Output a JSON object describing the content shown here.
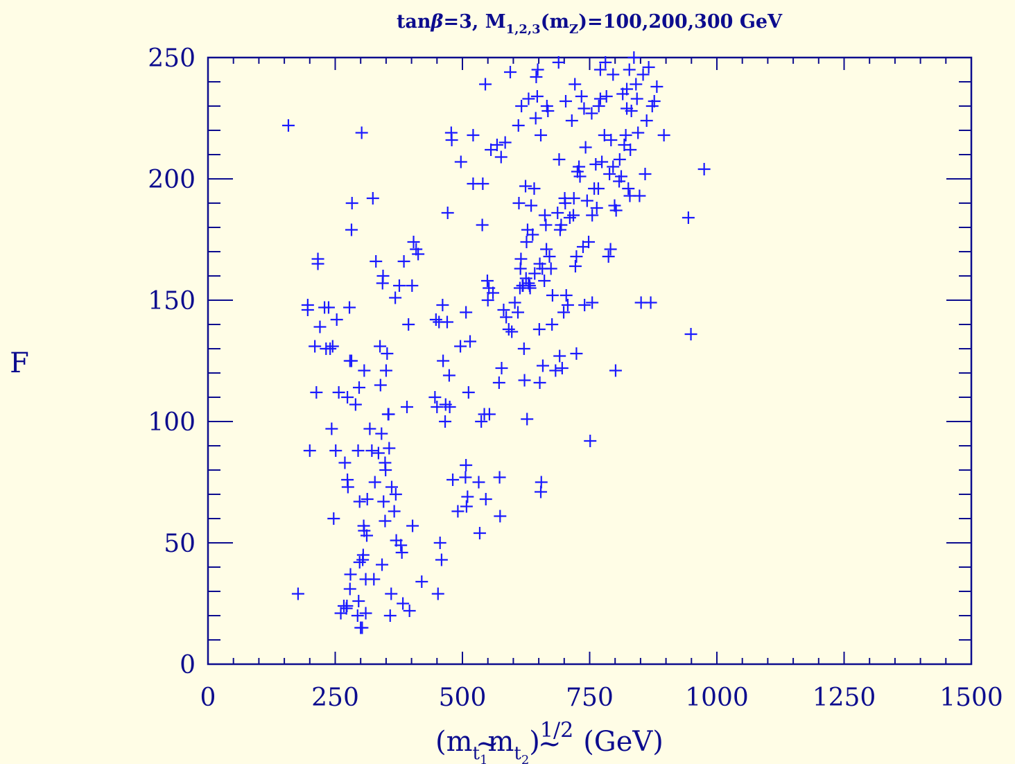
{
  "chart_data": {
    "type": "scatter",
    "title": "tanβ=3, M₁,₂,₃(m_Z)=100,200,300 GeV",
    "title_parts": {
      "tan": "tan",
      "beta": "β",
      "eq1": "=3,  M",
      "msub": "1,2,3",
      "mid": "(m",
      "zsub": "Z",
      "rest": ")=100,200,300 GeV"
    },
    "xlabel": "(m̃t₁ m̃t₂)^1/2 (GeV)",
    "xlabel_parts": {
      "open": "(m",
      "sub1": "t",
      "idx1": "1",
      "mid": "m",
      "sub2": "t",
      "idx2": "2",
      "close": ")",
      "exp": "1/2",
      "unit": "(GeV)",
      "tilde": "~"
    },
    "ylabel": "F",
    "xlim": [
      0,
      1500
    ],
    "ylim": [
      0,
      250
    ],
    "xticks": [
      "0",
      "250",
      "500",
      "750",
      "1000",
      "1250",
      "1500"
    ],
    "yticks": [
      "0",
      "50",
      "100",
      "150",
      "200",
      "250"
    ],
    "grid": false,
    "marker": "+",
    "color": "#1a1aff",
    "axis_color": "#0c0c8e",
    "background": "#fffde6",
    "points": [
      [
        158,
        222
      ],
      [
        177,
        29
      ],
      [
        196,
        148
      ],
      [
        196,
        146
      ],
      [
        200,
        88
      ],
      [
        210,
        131
      ],
      [
        213,
        112
      ],
      [
        216,
        165
      ],
      [
        216,
        167
      ],
      [
        220,
        139
      ],
      [
        229,
        147
      ],
      [
        232,
        130
      ],
      [
        237,
        147
      ],
      [
        240,
        130
      ],
      [
        243,
        97
      ],
      [
        245,
        131
      ],
      [
        247,
        60
      ],
      [
        251,
        88
      ],
      [
        253,
        142
      ],
      [
        257,
        112
      ],
      [
        261,
        21
      ],
      [
        267,
        24
      ],
      [
        269,
        83
      ],
      [
        272,
        23
      ],
      [
        273,
        24
      ],
      [
        274,
        110
      ],
      [
        274,
        76
      ],
      [
        275,
        73
      ],
      [
        278,
        147
      ],
      [
        279,
        125
      ],
      [
        279,
        31
      ],
      [
        280,
        37
      ],
      [
        282,
        125
      ],
      [
        282,
        179
      ],
      [
        283,
        190
      ],
      [
        290,
        107
      ],
      [
        294,
        20
      ],
      [
        295,
        88
      ],
      [
        296,
        26
      ],
      [
        297,
        114
      ],
      [
        298,
        67
      ],
      [
        298,
        42
      ],
      [
        300,
        15
      ],
      [
        302,
        219
      ],
      [
        303,
        15
      ],
      [
        304,
        43
      ],
      [
        305,
        45
      ],
      [
        306,
        57
      ],
      [
        307,
        121
      ],
      [
        307,
        55
      ],
      [
        310,
        35
      ],
      [
        310,
        21
      ],
      [
        312,
        53
      ],
      [
        313,
        68
      ],
      [
        318,
        97
      ],
      [
        322,
        88
      ],
      [
        324,
        192
      ],
      [
        326,
        35
      ],
      [
        328,
        75
      ],
      [
        330,
        166
      ],
      [
        335,
        87
      ],
      [
        338,
        131
      ],
      [
        339,
        115
      ],
      [
        341,
        95
      ],
      [
        342,
        41
      ],
      [
        343,
        157
      ],
      [
        344,
        160
      ],
      [
        345,
        67
      ],
      [
        348,
        59
      ],
      [
        348,
        83
      ],
      [
        349,
        80
      ],
      [
        350,
        121
      ],
      [
        352,
        128
      ],
      [
        354,
        103
      ],
      [
        355,
        103
      ],
      [
        356,
        89
      ],
      [
        358,
        20
      ],
      [
        360,
        29
      ],
      [
        361,
        73
      ],
      [
        366,
        63
      ],
      [
        368,
        151
      ],
      [
        369,
        70
      ],
      [
        370,
        51
      ],
      [
        376,
        156
      ],
      [
        379,
        49
      ],
      [
        381,
        46
      ],
      [
        383,
        25
      ],
      [
        385,
        166
      ],
      [
        391,
        106
      ],
      [
        394,
        140
      ],
      [
        396,
        22
      ],
      [
        401,
        156
      ],
      [
        402,
        57
      ],
      [
        404,
        174
      ],
      [
        409,
        171
      ],
      [
        413,
        169
      ],
      [
        420,
        34
      ],
      [
        446,
        110
      ],
      [
        448,
        142
      ],
      [
        450,
        106
      ],
      [
        452,
        29
      ],
      [
        454,
        141
      ],
      [
        456,
        50
      ],
      [
        459,
        43
      ],
      [
        461,
        148
      ],
      [
        462,
        125
      ],
      [
        466,
        100
      ],
      [
        467,
        107
      ],
      [
        470,
        141
      ],
      [
        471,
        186
      ],
      [
        474,
        119
      ],
      [
        475,
        106
      ],
      [
        478,
        219
      ],
      [
        479,
        216
      ],
      [
        481,
        76
      ],
      [
        491,
        63
      ],
      [
        496,
        131
      ],
      [
        497,
        207
      ],
      [
        506,
        77
      ],
      [
        507,
        145
      ],
      [
        507,
        82
      ],
      [
        508,
        65
      ],
      [
        510,
        69
      ],
      [
        512,
        112
      ],
      [
        515,
        133
      ],
      [
        521,
        218
      ],
      [
        521,
        198
      ],
      [
        532,
        75
      ],
      [
        534,
        54
      ],
      [
        537,
        100
      ],
      [
        539,
        181
      ],
      [
        540,
        198
      ],
      [
        543,
        103
      ],
      [
        545,
        239
      ],
      [
        546,
        68
      ],
      [
        549,
        158
      ],
      [
        550,
        150
      ],
      [
        552,
        155
      ],
      [
        553,
        103
      ],
      [
        556,
        212
      ],
      [
        560,
        153
      ],
      [
        568,
        214
      ],
      [
        572,
        116
      ],
      [
        573,
        77
      ],
      [
        574,
        61
      ],
      [
        576,
        209
      ],
      [
        577,
        122
      ],
      [
        581,
        146
      ],
      [
        584,
        215
      ],
      [
        586,
        143
      ],
      [
        591,
        138
      ],
      [
        594,
        244
      ],
      [
        597,
        137
      ],
      [
        603,
        149
      ],
      [
        609,
        145
      ],
      [
        610,
        222
      ],
      [
        611,
        190
      ],
      [
        613,
        155
      ],
      [
        614,
        163
      ],
      [
        615,
        167
      ],
      [
        616,
        230
      ],
      [
        618,
        156
      ],
      [
        619,
        156
      ],
      [
        621,
        130
      ],
      [
        622,
        117
      ],
      [
        624,
        197
      ],
      [
        625,
        159
      ],
      [
        626,
        174
      ],
      [
        627,
        101
      ],
      [
        628,
        179
      ],
      [
        630,
        233
      ],
      [
        630,
        157
      ],
      [
        632,
        156
      ],
      [
        633,
        155
      ],
      [
        635,
        189
      ],
      [
        638,
        177
      ],
      [
        641,
        196
      ],
      [
        642,
        161
      ],
      [
        644,
        225
      ],
      [
        645,
        242
      ],
      [
        647,
        234
      ],
      [
        648,
        245
      ],
      [
        651,
        138
      ],
      [
        652,
        165
      ],
      [
        652,
        116
      ],
      [
        654,
        218
      ],
      [
        654,
        71
      ],
      [
        655,
        75
      ],
      [
        657,
        163
      ],
      [
        658,
        123
      ],
      [
        661,
        158
      ],
      [
        662,
        185
      ],
      [
        664,
        181
      ],
      [
        665,
        171
      ],
      [
        666,
        230
      ],
      [
        668,
        228
      ],
      [
        671,
        168
      ],
      [
        674,
        163
      ],
      [
        676,
        140
      ],
      [
        677,
        152
      ],
      [
        683,
        121
      ],
      [
        687,
        186
      ],
      [
        689,
        248
      ],
      [
        690,
        208
      ],
      [
        691,
        127
      ],
      [
        692,
        179
      ],
      [
        694,
        181
      ],
      [
        696,
        122
      ],
      [
        699,
        145
      ],
      [
        701,
        192
      ],
      [
        702,
        190
      ],
      [
        703,
        232
      ],
      [
        704,
        152
      ],
      [
        707,
        148
      ],
      [
        711,
        184
      ],
      [
        715,
        224
      ],
      [
        718,
        185
      ],
      [
        719,
        192
      ],
      [
        721,
        239
      ],
      [
        722,
        164
      ],
      [
        724,
        168
      ],
      [
        724,
        128
      ],
      [
        726,
        203
      ],
      [
        729,
        205
      ],
      [
        731,
        201
      ],
      [
        734,
        234
      ],
      [
        737,
        172
      ],
      [
        739,
        229
      ],
      [
        740,
        148
      ],
      [
        742,
        213
      ],
      [
        745,
        191
      ],
      [
        748,
        174
      ],
      [
        751,
        92
      ],
      [
        754,
        227
      ],
      [
        755,
        185
      ],
      [
        755,
        149
      ],
      [
        759,
        196
      ],
      [
        762,
        206
      ],
      [
        764,
        188
      ],
      [
        767,
        196
      ],
      [
        768,
        230
      ],
      [
        771,
        233
      ],
      [
        771,
        245
      ],
      [
        774,
        207
      ],
      [
        779,
        218
      ],
      [
        781,
        248
      ],
      [
        783,
        234
      ],
      [
        787,
        168
      ],
      [
        789,
        202
      ],
      [
        791,
        171
      ],
      [
        792,
        216
      ],
      [
        796,
        243
      ],
      [
        796,
        205
      ],
      [
        799,
        189
      ],
      [
        801,
        121
      ],
      [
        802,
        187
      ],
      [
        808,
        199
      ],
      [
        809,
        208
      ],
      [
        812,
        201
      ],
      [
        815,
        235
      ],
      [
        818,
        214
      ],
      [
        821,
        218
      ],
      [
        823,
        229
      ],
      [
        823,
        237
      ],
      [
        826,
        196
      ],
      [
        828,
        245
      ],
      [
        829,
        193
      ],
      [
        830,
        212
      ],
      [
        832,
        228
      ],
      [
        837,
        250
      ],
      [
        841,
        239
      ],
      [
        843,
        233
      ],
      [
        845,
        219
      ],
      [
        848,
        193
      ],
      [
        851,
        149
      ],
      [
        855,
        243
      ],
      [
        859,
        202
      ],
      [
        862,
        224
      ],
      [
        866,
        246
      ],
      [
        870,
        149
      ],
      [
        873,
        230
      ],
      [
        877,
        232
      ],
      [
        882,
        238
      ],
      [
        896,
        218
      ],
      [
        944,
        184
      ],
      [
        949,
        136
      ],
      [
        975,
        204
      ]
    ]
  }
}
